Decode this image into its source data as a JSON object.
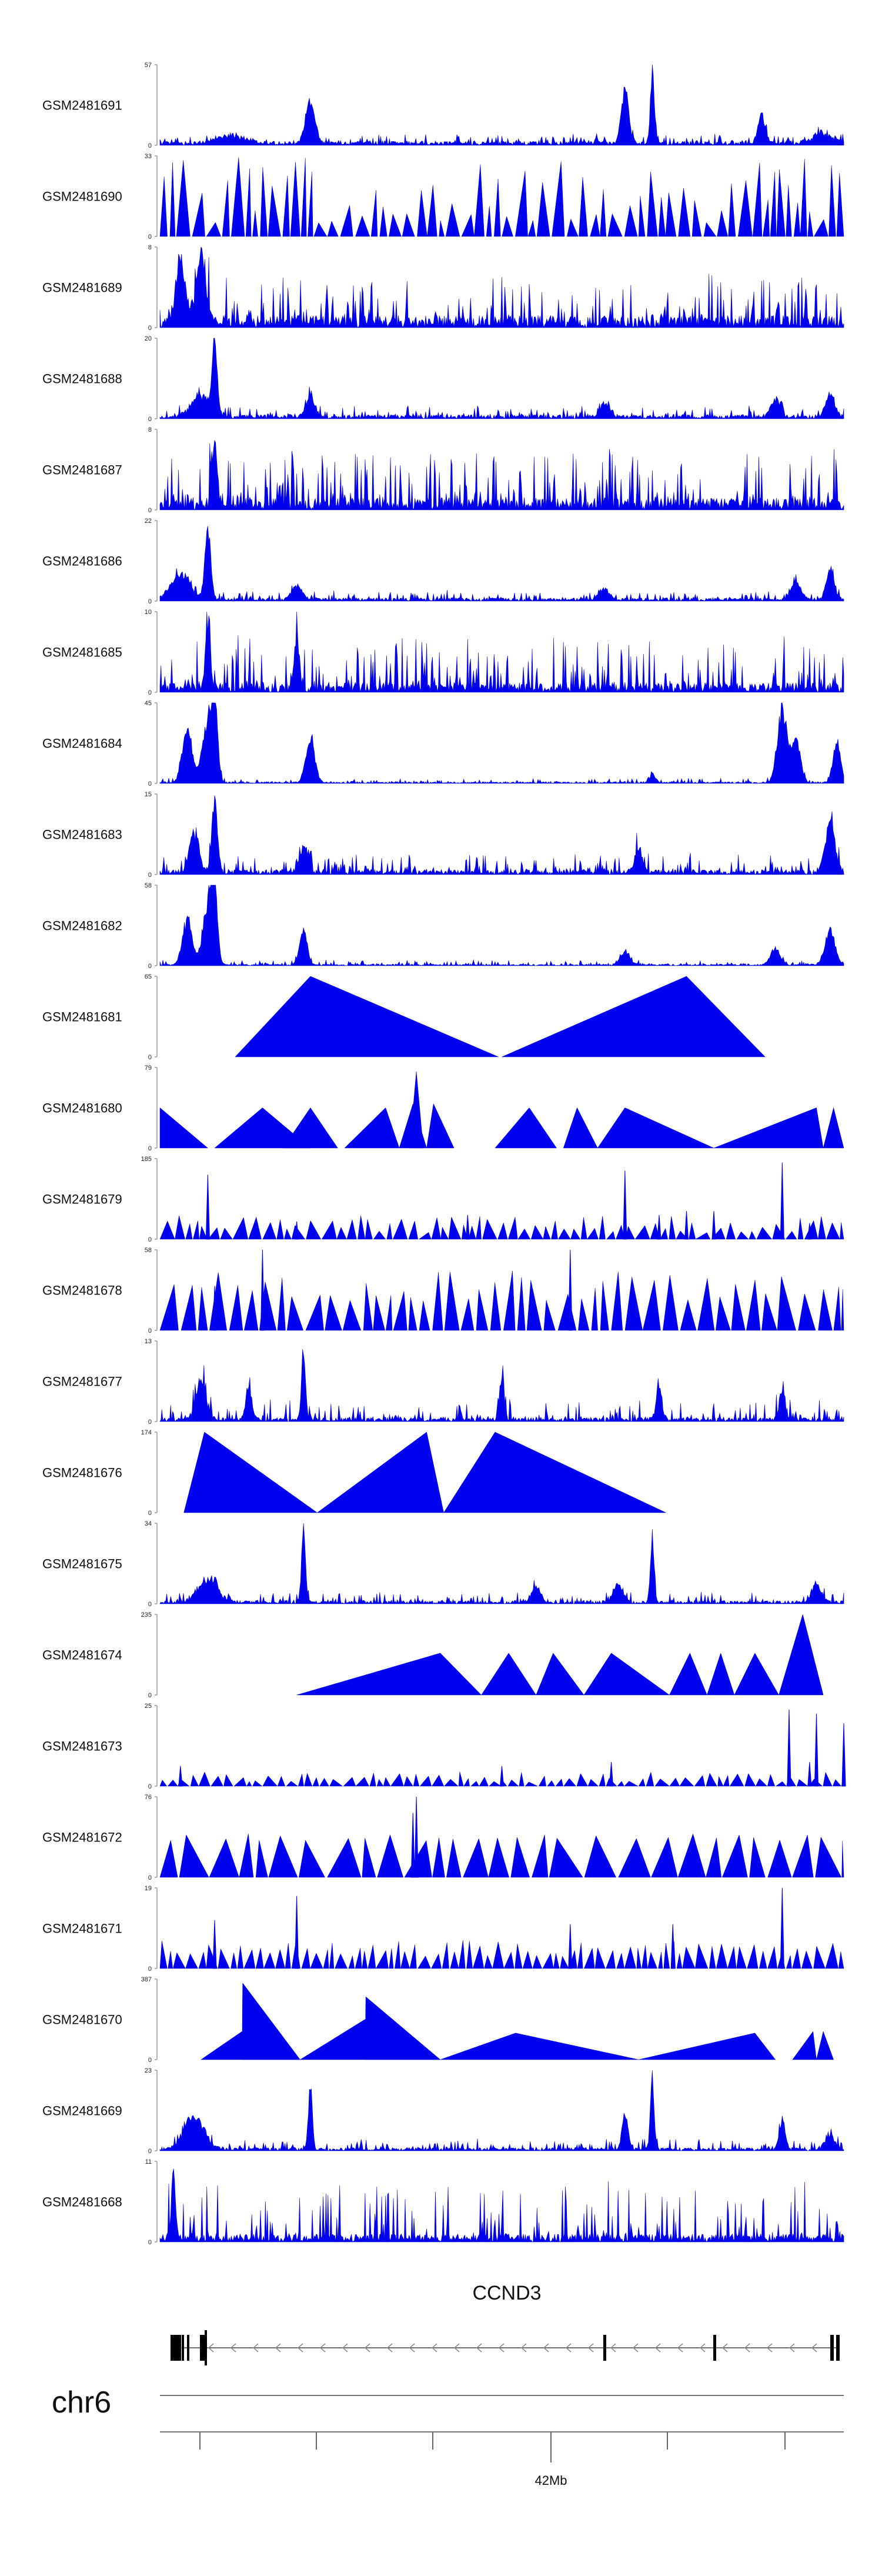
{
  "chart_data": {
    "type": "area",
    "title": "",
    "chromosome": "chr6",
    "gene": {
      "name": "CCND3",
      "strand": "-"
    },
    "axis": {
      "label": "42Mb",
      "labeled_tick_index": 3,
      "tick_count": 6
    },
    "series_color": "#0000ee",
    "tracks": [
      {
        "name": "GSM2481691",
        "ymin": 0,
        "ymax": 57,
        "style": "dense",
        "seed": 11,
        "base": 0.05,
        "noise": 0.1,
        "peaks": [
          [
            0.1,
            0.1,
            0.03
          ],
          [
            0.22,
            0.55,
            0.01
          ],
          [
            0.68,
            0.7,
            0.008
          ],
          [
            0.72,
            1.0,
            0.004
          ],
          [
            0.88,
            0.4,
            0.008
          ],
          [
            0.97,
            0.15,
            0.02
          ]
        ]
      },
      {
        "name": "GSM2481690",
        "ymin": 0,
        "ymax": 33,
        "style": "triangles",
        "seed": 12,
        "n": 70,
        "start": 0.0,
        "end": 1.0,
        "hmin": 0.15,
        "hmax": 1.0
      },
      {
        "name": "GSM2481689",
        "ymin": 0,
        "ymax": 8,
        "style": "dense",
        "seed": 13,
        "base": 0.15,
        "noise": 0.55,
        "peaks": [
          [
            0.03,
            0.9,
            0.01
          ],
          [
            0.06,
            0.9,
            0.01
          ]
        ]
      },
      {
        "name": "GSM2481688",
        "ymin": 0,
        "ymax": 20,
        "style": "dense",
        "seed": 14,
        "base": 0.05,
        "noise": 0.12,
        "peaks": [
          [
            0.06,
            0.3,
            0.02
          ],
          [
            0.08,
            1.0,
            0.005
          ],
          [
            0.22,
            0.3,
            0.008
          ],
          [
            0.65,
            0.18,
            0.01
          ],
          [
            0.9,
            0.25,
            0.01
          ],
          [
            0.98,
            0.3,
            0.01
          ]
        ]
      },
      {
        "name": "GSM2481687",
        "ymin": 0,
        "ymax": 8,
        "style": "dense",
        "seed": 15,
        "base": 0.15,
        "noise": 0.65,
        "peaks": [
          [
            0.08,
            0.9,
            0.005
          ]
        ]
      },
      {
        "name": "GSM2481686",
        "ymin": 0,
        "ymax": 22,
        "style": "dense",
        "seed": 16,
        "base": 0.04,
        "noise": 0.1,
        "peaks": [
          [
            0.03,
            0.35,
            0.02
          ],
          [
            0.07,
            1.0,
            0.006
          ],
          [
            0.2,
            0.2,
            0.01
          ],
          [
            0.65,
            0.15,
            0.01
          ],
          [
            0.93,
            0.25,
            0.01
          ],
          [
            0.98,
            0.45,
            0.008
          ]
        ]
      },
      {
        "name": "GSM2481685",
        "ymin": 0,
        "ymax": 10,
        "style": "dense",
        "seed": 17,
        "base": 0.12,
        "noise": 0.6,
        "peaks": [
          [
            0.07,
            0.9,
            0.005
          ],
          [
            0.2,
            0.7,
            0.005
          ]
        ]
      },
      {
        "name": "GSM2481684",
        "ymin": 0,
        "ymax": 45,
        "style": "dense",
        "seed": 18,
        "base": 0.02,
        "noise": 0.05,
        "peaks": [
          [
            0.04,
            0.78,
            0.01
          ],
          [
            0.07,
            0.86,
            0.011
          ],
          [
            0.08,
            0.95,
            0.006
          ],
          [
            0.22,
            0.65,
            0.009
          ],
          [
            0.72,
            0.12,
            0.006
          ],
          [
            0.91,
            1.0,
            0.01
          ],
          [
            0.93,
            0.6,
            0.009
          ],
          [
            0.99,
            0.55,
            0.008
          ]
        ]
      },
      {
        "name": "GSM2481683",
        "ymin": 0,
        "ymax": 15,
        "style": "dense",
        "seed": 19,
        "base": 0.06,
        "noise": 0.22,
        "peaks": [
          [
            0.05,
            0.55,
            0.01
          ],
          [
            0.08,
            1.0,
            0.006
          ],
          [
            0.21,
            0.35,
            0.008
          ],
          [
            0.7,
            0.35,
            0.008
          ],
          [
            0.98,
            0.7,
            0.01
          ]
        ]
      },
      {
        "name": "GSM2481682",
        "ymin": 0,
        "ymax": 58,
        "style": "dense",
        "seed": 20,
        "base": 0.02,
        "noise": 0.06,
        "peaks": [
          [
            0.04,
            0.6,
            0.01
          ],
          [
            0.07,
            0.85,
            0.01
          ],
          [
            0.08,
            1.0,
            0.006
          ],
          [
            0.21,
            0.45,
            0.008
          ],
          [
            0.68,
            0.18,
            0.01
          ],
          [
            0.9,
            0.22,
            0.01
          ],
          [
            0.98,
            0.5,
            0.01
          ]
        ]
      },
      {
        "name": "GSM2481681",
        "ymin": 0,
        "ymax": 65,
        "style": "shapes",
        "shapes": [
          [
            0.11,
            0.22,
            0.495,
            1.0
          ],
          [
            0.5,
            0.77,
            0.885,
            1.0
          ]
        ]
      },
      {
        "name": "GSM2481680",
        "ymin": 0,
        "ymax": 79,
        "style": "shapes",
        "shapes": [
          [
            0.0,
            0.0,
            0.07,
            0.5
          ],
          [
            0.08,
            0.15,
            0.22,
            0.5
          ],
          [
            0.18,
            0.22,
            0.26,
            0.5
          ],
          [
            0.27,
            0.33,
            0.35,
            0.5
          ],
          [
            0.35,
            0.37,
            0.39,
            0.55
          ],
          [
            0.365,
            0.375,
            0.385,
            0.95
          ],
          [
            0.39,
            0.4,
            0.43,
            0.55
          ],
          [
            0.49,
            0.54,
            0.58,
            0.5
          ],
          [
            0.59,
            0.61,
            0.64,
            0.5
          ],
          [
            0.64,
            0.68,
            0.81,
            0.5
          ],
          [
            0.81,
            0.96,
            0.97,
            0.5
          ],
          [
            0.97,
            0.985,
            1.0,
            0.5
          ]
        ]
      },
      {
        "name": "GSM2481679",
        "ymin": 0,
        "ymax": 185,
        "style": "tri_dense",
        "seed": 21,
        "n": 65,
        "hmin": 0.08,
        "hmax": 0.3,
        "spikes": [
          [
            0.07,
            0.8
          ],
          [
            0.2,
            0.22
          ],
          [
            0.45,
            0.3
          ],
          [
            0.68,
            0.85
          ],
          [
            0.73,
            0.3
          ],
          [
            0.77,
            0.35
          ],
          [
            0.81,
            0.35
          ],
          [
            0.91,
            0.95
          ],
          [
            0.95,
            0.2
          ]
        ]
      },
      {
        "name": "GSM2481678",
        "ymin": 0,
        "ymax": 58,
        "style": "triangles",
        "seed": 22,
        "n": 55,
        "start": 0.0,
        "end": 1.0,
        "hmin": 0.35,
        "hmax": 0.75,
        "spikes": [
          [
            0.15,
            1.0
          ],
          [
            0.6,
            1.0
          ],
          [
            0.08,
            0.55
          ]
        ]
      },
      {
        "name": "GSM2481677",
        "ymin": 0,
        "ymax": 13,
        "style": "dense",
        "seed": 23,
        "base": 0.05,
        "noise": 0.25,
        "peaks": [
          [
            0.06,
            0.55,
            0.01
          ],
          [
            0.13,
            0.45,
            0.006
          ],
          [
            0.21,
            1.0,
            0.004
          ],
          [
            0.5,
            0.55,
            0.005
          ],
          [
            0.73,
            0.45,
            0.006
          ],
          [
            0.91,
            0.4,
            0.006
          ]
        ]
      },
      {
        "name": "GSM2481676",
        "ymin": 0,
        "ymax": 174,
        "style": "shapes",
        "shapes": [
          [
            0.035,
            0.065,
            0.23,
            1.0
          ],
          [
            0.23,
            0.39,
            0.415,
            1.0
          ],
          [
            0.415,
            0.49,
            0.74,
            1.0
          ]
        ]
      },
      {
        "name": "GSM2481675",
        "ymin": 0,
        "ymax": 34,
        "style": "dense",
        "seed": 24,
        "base": 0.04,
        "noise": 0.12,
        "peaks": [
          [
            0.07,
            0.3,
            0.02
          ],
          [
            0.21,
            1.0,
            0.004
          ],
          [
            0.55,
            0.2,
            0.01
          ],
          [
            0.67,
            0.25,
            0.01
          ],
          [
            0.72,
            0.9,
            0.004
          ],
          [
            0.96,
            0.25,
            0.01
          ]
        ]
      },
      {
        "name": "GSM2481674",
        "ymin": 0,
        "ymax": 235,
        "style": "shapes",
        "shapes": [
          [
            0.2,
            0.41,
            0.47,
            0.52
          ],
          [
            0.47,
            0.51,
            0.55,
            0.52
          ],
          [
            0.55,
            0.575,
            0.62,
            0.52
          ],
          [
            0.62,
            0.66,
            0.745,
            0.52
          ],
          [
            0.745,
            0.775,
            0.8,
            0.52
          ],
          [
            0.8,
            0.82,
            0.84,
            0.52
          ],
          [
            0.84,
            0.87,
            0.905,
            0.52
          ],
          [
            0.905,
            0.94,
            0.97,
            1.0
          ]
        ]
      },
      {
        "name": "GSM2481673",
        "ymin": 0,
        "ymax": 25,
        "style": "tri_dense",
        "seed": 25,
        "n": 70,
        "hmin": 0.05,
        "hmax": 0.18,
        "spikes": [
          [
            0.03,
            0.25
          ],
          [
            0.5,
            0.25
          ],
          [
            0.66,
            0.3
          ],
          [
            0.92,
            0.95
          ],
          [
            0.95,
            0.3
          ],
          [
            0.96,
            0.9
          ],
          [
            1.0,
            0.78
          ]
        ]
      },
      {
        "name": "GSM2481672",
        "ymin": 0,
        "ymax": 76,
        "style": "triangles",
        "seed": 26,
        "n": 30,
        "start": 0.0,
        "end": 1.0,
        "hmin": 0.45,
        "hmax": 0.55,
        "spikes": [
          [
            0.375,
            1.0
          ],
          [
            0.37,
            0.8
          ]
        ]
      },
      {
        "name": "GSM2481671",
        "ymin": 0,
        "ymax": 19,
        "style": "tri_dense",
        "seed": 27,
        "n": 80,
        "hmin": 0.15,
        "hmax": 0.35,
        "spikes": [
          [
            0.2,
            0.9
          ],
          [
            0.08,
            0.6
          ],
          [
            0.91,
            1.0
          ],
          [
            0.6,
            0.55
          ],
          [
            0.75,
            0.55
          ]
        ]
      },
      {
        "name": "GSM2481670",
        "ymin": 0,
        "ymax": 387,
        "style": "shapes",
        "shapes": [
          [
            0.06,
            0.12,
            0.205,
            0.35
          ],
          [
            0.12,
            0.121,
            0.205,
            0.95
          ],
          [
            0.205,
            0.3,
            0.41,
            0.5
          ],
          [
            0.3,
            0.301,
            0.41,
            0.78
          ],
          [
            0.41,
            0.52,
            0.7,
            0.33
          ],
          [
            0.7,
            0.87,
            0.9,
            0.33
          ],
          [
            0.925,
            0.955,
            0.96,
            0.35
          ],
          [
            0.96,
            0.97,
            0.985,
            0.35
          ]
        ]
      },
      {
        "name": "GSM2481669",
        "ymin": 0,
        "ymax": 23,
        "style": "dense",
        "seed": 28,
        "base": 0.04,
        "noise": 0.12,
        "peaks": [
          [
            0.05,
            0.45,
            0.02
          ],
          [
            0.22,
            0.9,
            0.004
          ],
          [
            0.68,
            0.5,
            0.006
          ],
          [
            0.72,
            1.0,
            0.004
          ],
          [
            0.91,
            0.4,
            0.006
          ],
          [
            0.98,
            0.2,
            0.01
          ]
        ]
      },
      {
        "name": "GSM2481668",
        "ymin": 0,
        "ymax": 11,
        "style": "dense",
        "seed": 29,
        "base": 0.1,
        "noise": 0.7,
        "peaks": [
          [
            0.02,
            0.95,
            0.004
          ]
        ]
      }
    ]
  }
}
